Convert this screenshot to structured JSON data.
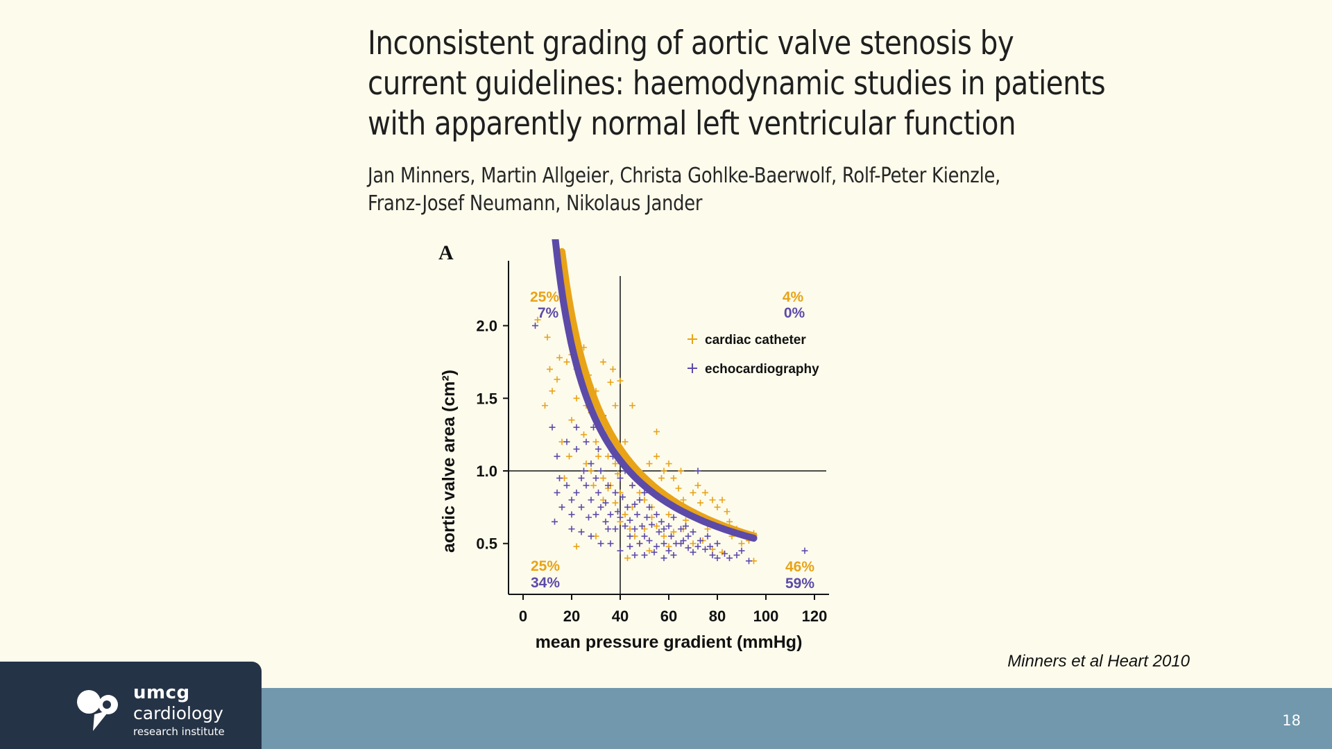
{
  "slide": {
    "title_lines": [
      "Inconsistent grading of aortic valve stenosis by",
      "current guidelines: haemodynamic studies in patients",
      "with apparently normal left ventricular function"
    ],
    "author_lines": [
      "Jan Minners, Martin Allgeier, Christa Gohlke-Baerwolf, Rolf-Peter Kienzle,",
      "Franz-Josef Neumann, Nikolaus Jander"
    ],
    "citation": "Minners et al Heart 2010",
    "page_number": "18"
  },
  "logo": {
    "name": "umcg",
    "line2": "cardiology",
    "line3": "research institute",
    "icon": "umcg-heart-logo-icon"
  },
  "colors": {
    "catheter": "#e8a317",
    "echo": "#5c4aa8",
    "footer_bar": "#7198ad",
    "logo_bg": "#253346",
    "background": "#fdfbec"
  },
  "chart_data": {
    "type": "scatter",
    "panel_label": "A",
    "xlabel": "mean pressure gradient (mmHg)",
    "ylabel": "aortic valve area (cm²)",
    "xlim": [
      -6,
      126
    ],
    "ylim": [
      0.15,
      2.38
    ],
    "xticks": [
      "0",
      "20",
      "40",
      "60",
      "80",
      "100",
      "120"
    ],
    "yticks": [
      "0.5",
      "1.0",
      "1.5",
      "2.0"
    ],
    "thresholds": {
      "x": 40,
      "y": 1.0
    },
    "legend_position": "upper-right",
    "quadrant_labels": {
      "upper_left": {
        "catheter": "25%",
        "echo": "7%"
      },
      "upper_right": {
        "catheter": "4%",
        "echo": "0%"
      },
      "lower_left": {
        "catheter": "25%",
        "echo": "34%"
      },
      "lower_right": {
        "catheter": "46%",
        "echo": "59%"
      }
    },
    "series": [
      {
        "name": "cardiac catheter",
        "color": "#e8a317",
        "fit_curve": {
          "x_range": [
            16,
            95
          ],
          "k": 26.5,
          "p": 0.85
        },
        "points": [
          [
            6,
            2.04
          ],
          [
            10,
            1.92
          ],
          [
            9,
            1.45
          ],
          [
            11,
            1.7
          ],
          [
            12,
            1.55
          ],
          [
            14,
            1.63
          ],
          [
            15,
            1.78
          ],
          [
            18,
            1.75
          ],
          [
            20,
            1.8
          ],
          [
            22,
            1.7
          ],
          [
            24,
            1.6
          ],
          [
            25,
            1.85
          ],
          [
            27,
            1.66
          ],
          [
            30,
            1.55
          ],
          [
            33,
            1.75
          ],
          [
            36,
            1.61
          ],
          [
            38,
            1.45
          ],
          [
            37,
            1.7
          ],
          [
            20,
            1.35
          ],
          [
            22,
            1.5
          ],
          [
            25,
            1.25
          ],
          [
            28,
            1.4
          ],
          [
            30,
            1.2
          ],
          [
            32,
            1.3
          ],
          [
            35,
            1.1
          ],
          [
            38,
            1.05
          ],
          [
            40,
            1.15
          ],
          [
            42,
            1.2
          ],
          [
            26,
            1.05
          ],
          [
            19,
            1.1
          ],
          [
            16,
            1.2
          ],
          [
            29,
            0.9
          ],
          [
            33,
            0.95
          ],
          [
            36,
            0.9
          ],
          [
            40,
            0.85
          ],
          [
            44,
            1.0
          ],
          [
            48,
            0.95
          ],
          [
            52,
            1.05
          ],
          [
            55,
            1.1
          ],
          [
            58,
            1.0
          ],
          [
            60,
            1.05
          ],
          [
            62,
            0.95
          ],
          [
            55,
            1.27
          ],
          [
            65,
            1.0
          ],
          [
            48,
            0.85
          ],
          [
            50,
            0.8
          ],
          [
            53,
            0.75
          ],
          [
            57,
            0.82
          ],
          [
            60,
            0.7
          ],
          [
            63,
            0.78
          ],
          [
            66,
            0.8
          ],
          [
            68,
            0.72
          ],
          [
            70,
            0.85
          ],
          [
            72,
            0.9
          ],
          [
            75,
            0.85
          ],
          [
            78,
            0.8
          ],
          [
            80,
            0.75
          ],
          [
            82,
            0.8
          ],
          [
            85,
            0.65
          ],
          [
            88,
            0.6
          ],
          [
            90,
            0.5
          ],
          [
            93,
            0.52
          ],
          [
            95,
            0.57
          ],
          [
            95,
            0.38
          ],
          [
            42,
            0.7
          ],
          [
            45,
            0.75
          ],
          [
            40,
            0.65
          ],
          [
            44,
            0.6
          ],
          [
            46,
            0.55
          ],
          [
            50,
            0.6
          ],
          [
            55,
            0.62
          ],
          [
            58,
            0.55
          ],
          [
            62,
            0.58
          ],
          [
            66,
            0.6
          ],
          [
            70,
            0.5
          ],
          [
            74,
            0.52
          ],
          [
            78,
            0.46
          ],
          [
            82,
            0.44
          ],
          [
            43,
            0.4
          ],
          [
            22,
            0.48
          ],
          [
            30,
            0.55
          ],
          [
            48,
            0.5
          ],
          [
            52,
            0.45
          ],
          [
            60,
            0.48
          ],
          [
            76,
            0.6
          ],
          [
            38,
            0.78
          ],
          [
            35,
            0.88
          ],
          [
            33,
            0.8
          ],
          [
            45,
            0.9
          ],
          [
            47,
            1.0
          ],
          [
            51,
            0.9
          ],
          [
            57,
            0.95
          ],
          [
            64,
            0.88
          ],
          [
            71,
            0.7
          ],
          [
            73,
            0.78
          ],
          [
            84,
            0.72
          ],
          [
            40,
            1.62
          ],
          [
            45,
            1.45
          ],
          [
            26,
            1.45
          ],
          [
            31,
            1.1
          ],
          [
            17,
            0.95
          ],
          [
            28,
            1.0
          ],
          [
            34,
            1.25
          ],
          [
            39,
            0.98
          ],
          [
            53,
            0.68
          ],
          [
            67,
            0.66
          ],
          [
            86,
            0.55
          ]
        ]
      },
      {
        "name": "echocardiography",
        "color": "#5c4aa8",
        "fit_curve": {
          "x_range": [
            9,
            95
          ],
          "k": 20.5,
          "p": 0.8
        },
        "points": [
          [
            5,
            2.0
          ],
          [
            12,
            1.3
          ],
          [
            14,
            1.1
          ],
          [
            15,
            0.95
          ],
          [
            14,
            0.85
          ],
          [
            16,
            0.75
          ],
          [
            13,
            0.65
          ],
          [
            18,
            0.9
          ],
          [
            20,
            0.8
          ],
          [
            22,
            0.85
          ],
          [
            24,
            0.75
          ],
          [
            26,
            0.9
          ],
          [
            28,
            0.8
          ],
          [
            30,
            0.7
          ],
          [
            32,
            0.75
          ],
          [
            34,
            0.65
          ],
          [
            36,
            0.7
          ],
          [
            38,
            0.6
          ],
          [
            40,
            0.68
          ],
          [
            42,
            0.62
          ],
          [
            44,
            0.55
          ],
          [
            46,
            0.6
          ],
          [
            48,
            0.5
          ],
          [
            50,
            0.55
          ],
          [
            52,
            0.52
          ],
          [
            55,
            0.48
          ],
          [
            58,
            0.5
          ],
          [
            60,
            0.45
          ],
          [
            62,
            0.42
          ],
          [
            65,
            0.5
          ],
          [
            68,
            0.47
          ],
          [
            70,
            0.44
          ],
          [
            72,
            0.48
          ],
          [
            75,
            0.46
          ],
          [
            78,
            0.42
          ],
          [
            80,
            0.4
          ],
          [
            85,
            0.4
          ],
          [
            90,
            0.45
          ],
          [
            93,
            0.38
          ],
          [
            25,
            1.0
          ],
          [
            28,
            1.05
          ],
          [
            30,
            0.95
          ],
          [
            32,
            1.0
          ],
          [
            35,
            0.9
          ],
          [
            38,
            0.85
          ],
          [
            40,
            0.95
          ],
          [
            42,
            1.0
          ],
          [
            45,
            0.9
          ],
          [
            48,
            0.8
          ],
          [
            50,
            0.85
          ],
          [
            52,
            0.75
          ],
          [
            55,
            0.7
          ],
          [
            57,
            0.65
          ],
          [
            60,
            0.62
          ],
          [
            62,
            0.68
          ],
          [
            65,
            0.6
          ],
          [
            68,
            0.55
          ],
          [
            70,
            0.58
          ],
          [
            73,
            0.52
          ],
          [
            76,
            0.55
          ],
          [
            80,
            0.5
          ],
          [
            20,
            0.6
          ],
          [
            24,
            0.58
          ],
          [
            28,
            0.55
          ],
          [
            32,
            0.5
          ],
          [
            36,
            0.5
          ],
          [
            40,
            0.45
          ],
          [
            44,
            0.48
          ],
          [
            46,
            0.42
          ],
          [
            50,
            0.42
          ],
          [
            54,
            0.44
          ],
          [
            58,
            0.4
          ],
          [
            72,
            1.0
          ],
          [
            116,
            0.45
          ],
          [
            22,
            1.15
          ],
          [
            26,
            1.2
          ],
          [
            29,
            1.3
          ],
          [
            31,
            1.15
          ],
          [
            33,
            1.38
          ],
          [
            35,
            1.2
          ],
          [
            37,
            1.1
          ],
          [
            22,
            1.3
          ],
          [
            18,
            1.2
          ],
          [
            24,
            0.95
          ],
          [
            43,
            0.75
          ],
          [
            47,
            0.7
          ],
          [
            53,
            0.63
          ],
          [
            56,
            0.58
          ],
          [
            61,
            0.55
          ],
          [
            66,
            0.52
          ],
          [
            27,
            0.68
          ],
          [
            35,
            0.6
          ],
          [
            39,
            0.72
          ],
          [
            44,
            0.66
          ],
          [
            49,
            0.62
          ],
          [
            20,
            0.7
          ],
          [
            31,
            0.85
          ],
          [
            34,
            0.78
          ],
          [
            41,
            0.82
          ],
          [
            46,
            0.77
          ],
          [
            51,
            0.68
          ],
          [
            58,
            0.6
          ],
          [
            63,
            0.5
          ],
          [
            67,
            0.62
          ],
          [
            77,
            0.48
          ],
          [
            83,
            0.43
          ],
          [
            88,
            0.42
          ]
        ]
      }
    ]
  }
}
